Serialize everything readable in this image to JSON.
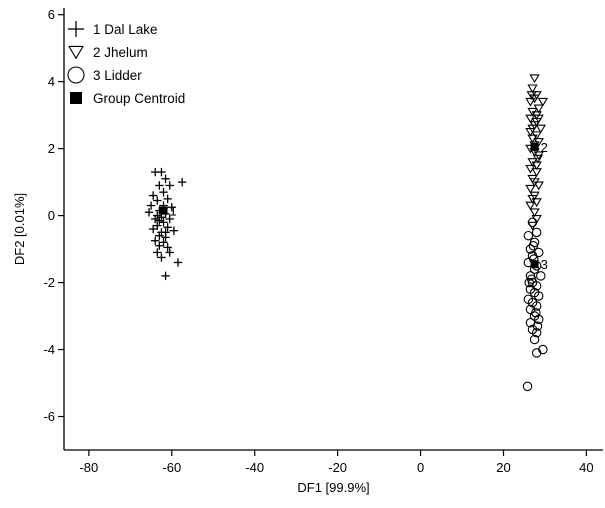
{
  "chart_data": {
    "type": "scatter",
    "title": "",
    "xlabel": "DF1 [99.9%]",
    "ylabel": "DF2 [0.01%]",
    "xlim": [
      -86,
      44
    ],
    "ylim": [
      -7,
      6.2
    ],
    "xticks": [
      -80,
      -60,
      -40,
      -20,
      0,
      20,
      40
    ],
    "yticks": [
      -6,
      -4,
      -2,
      0,
      2,
      4,
      6
    ],
    "grid": false,
    "legend_position": "top-left",
    "series": [
      {
        "name": "1 Dal Lake",
        "marker": "plus",
        "points": [
          [
            -64,
            1.3
          ],
          [
            -62.5,
            1.3
          ],
          [
            -61.5,
            1.1
          ],
          [
            -57.5,
            1.0
          ],
          [
            -63,
            0.9
          ],
          [
            -60.5,
            0.9
          ],
          [
            -62,
            0.7
          ],
          [
            -64.5,
            0.6
          ],
          [
            -61,
            0.5
          ],
          [
            -63.5,
            0.45
          ],
          [
            -65,
            0.3
          ],
          [
            -62,
            0.3
          ],
          [
            -60,
            0.25
          ],
          [
            -63,
            0.15
          ],
          [
            -65.5,
            0.1
          ],
          [
            -61.5,
            0.05
          ],
          [
            -63.5,
            0.0
          ],
          [
            -62.5,
            -0.05
          ],
          [
            -64,
            -0.1
          ],
          [
            -60.5,
            -0.1
          ],
          [
            -62,
            -0.2
          ],
          [
            -63.5,
            -0.3
          ],
          [
            -61,
            -0.35
          ],
          [
            -64.5,
            -0.4
          ],
          [
            -59.5,
            -0.45
          ],
          [
            -62.5,
            -0.5
          ],
          [
            -63,
            -0.6
          ],
          [
            -61.5,
            -0.65
          ],
          [
            -64,
            -0.75
          ],
          [
            -62,
            -0.8
          ],
          [
            -63,
            -0.9
          ],
          [
            -61,
            -0.95
          ],
          [
            -63.5,
            -1.1
          ],
          [
            -60.5,
            -1.1
          ],
          [
            -62.5,
            -1.25
          ],
          [
            -58.5,
            -1.4
          ],
          [
            -61.5,
            -1.8
          ],
          [
            -62,
            0.2
          ],
          [
            -63,
            -0.15
          ],
          [
            -61.5,
            -0.5
          ]
        ]
      },
      {
        "name": "2 Jhelum",
        "marker": "triangle-down",
        "points": [
          [
            27.5,
            4.1
          ],
          [
            27,
            3.8
          ],
          [
            28,
            3.6
          ],
          [
            26.5,
            3.4
          ],
          [
            29.5,
            3.4
          ],
          [
            28.5,
            3.2
          ],
          [
            27,
            3.1
          ],
          [
            26.5,
            2.9
          ],
          [
            28,
            2.8
          ],
          [
            27.5,
            2.7
          ],
          [
            29,
            2.6
          ],
          [
            26.5,
            2.5
          ],
          [
            28,
            2.4
          ],
          [
            27,
            2.3
          ],
          [
            28.5,
            2.2
          ],
          [
            26.5,
            2.0
          ],
          [
            27.5,
            1.9
          ],
          [
            28.5,
            1.8
          ],
          [
            27,
            1.6
          ],
          [
            26.5,
            1.4
          ],
          [
            28,
            1.3
          ],
          [
            27,
            1.1
          ],
          [
            28.5,
            0.9
          ],
          [
            26.5,
            0.8
          ],
          [
            27.5,
            0.6
          ],
          [
            28,
            0.4
          ],
          [
            26.5,
            0.3
          ],
          [
            27.5,
            0.1
          ],
          [
            28,
            -0.1
          ],
          [
            27,
            -0.3
          ],
          [
            27.5,
            3.5
          ],
          [
            28,
            3.0
          ],
          [
            27,
            2.6
          ],
          [
            27.5,
            2.1
          ],
          [
            28,
            1.5
          ],
          [
            27.5,
            1.0
          ],
          [
            27,
            0.5
          ],
          [
            28.5,
            2.9
          ],
          [
            26.8,
            3.6
          ],
          [
            28.3,
            1.7
          ]
        ]
      },
      {
        "name": "3 Lidder",
        "marker": "circle",
        "points": [
          [
            27,
            -0.2
          ],
          [
            26,
            -0.6
          ],
          [
            28,
            -0.5
          ],
          [
            27.5,
            -0.8
          ],
          [
            26.5,
            -1.0
          ],
          [
            28.5,
            -1.1
          ],
          [
            27,
            -1.2
          ],
          [
            26,
            -1.4
          ],
          [
            28,
            -1.5
          ],
          [
            27.5,
            -1.6
          ],
          [
            26.5,
            -1.8
          ],
          [
            29,
            -1.8
          ],
          [
            27,
            -2.0
          ],
          [
            28,
            -2.1
          ],
          [
            26.5,
            -2.2
          ],
          [
            27.5,
            -2.3
          ],
          [
            28.5,
            -2.4
          ],
          [
            26,
            -2.5
          ],
          [
            27,
            -2.6
          ],
          [
            28,
            -2.7
          ],
          [
            26.5,
            -2.8
          ],
          [
            27.5,
            -3.0
          ],
          [
            28.5,
            -3.1
          ],
          [
            26.5,
            -3.2
          ],
          [
            27,
            -3.4
          ],
          [
            28,
            -3.5
          ],
          [
            27.5,
            -3.7
          ],
          [
            29.5,
            -4.0
          ],
          [
            28,
            -4.1
          ],
          [
            25.8,
            -5.1
          ],
          [
            27.3,
            -1.3
          ],
          [
            26.8,
            -1.9
          ],
          [
            27.8,
            -2.9
          ],
          [
            27.2,
            -0.9
          ],
          [
            28.2,
            -3.3
          ],
          [
            26.2,
            -2.0
          ]
        ]
      }
    ],
    "centroids": [
      {
        "name": "Group Centroid",
        "label": "1",
        "x": -62,
        "y": 0.15
      },
      {
        "name": "Group Centroid",
        "label": "2",
        "x": 27.5,
        "y": 2.05
      },
      {
        "name": "Group Centroid",
        "label": "3",
        "x": 27.5,
        "y": -1.45
      }
    ],
    "legend": [
      {
        "label": "1 Dal Lake",
        "marker": "plus"
      },
      {
        "label": "2 Jhelum",
        "marker": "triangle-down"
      },
      {
        "label": "3 Lidder",
        "marker": "circle"
      },
      {
        "label": "Group Centroid",
        "marker": "square"
      }
    ]
  }
}
